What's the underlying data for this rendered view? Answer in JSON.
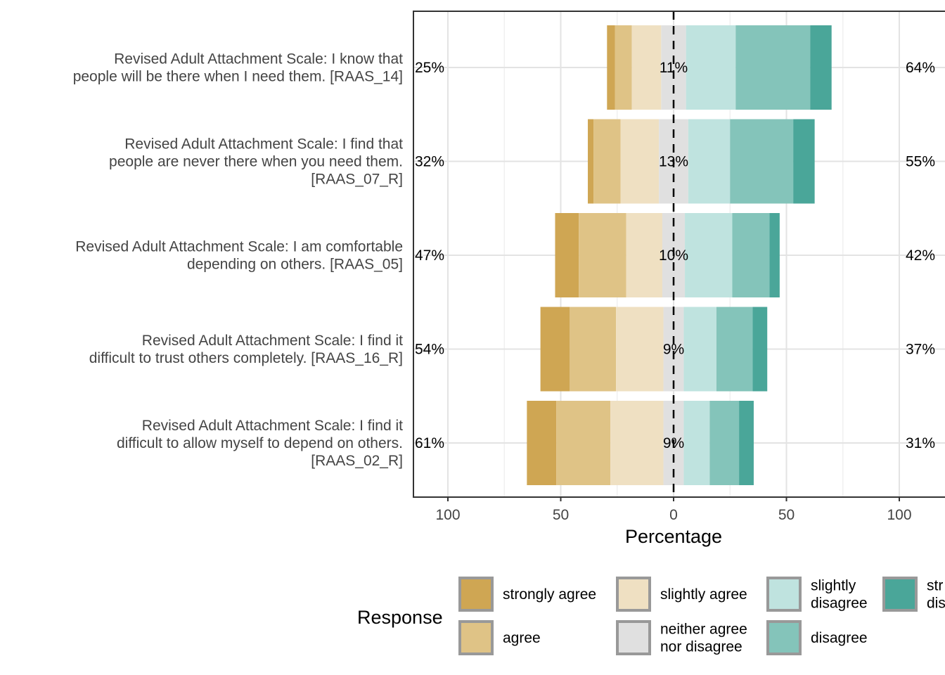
{
  "chart_data": {
    "type": "bar",
    "orientation": "horizontal-diverging",
    "xlabel": "Percentage",
    "x_ticks": [
      {
        "value": -100,
        "label": "100"
      },
      {
        "value": -50,
        "label": "50"
      },
      {
        "value": 0,
        "label": "0"
      },
      {
        "value": 50,
        "label": "50"
      },
      {
        "value": 100,
        "label": "100"
      }
    ],
    "xlim": [
      -115,
      120
    ],
    "grid": true,
    "legend": {
      "title": "Response",
      "placement": "bottom",
      "entries": [
        {
          "name": "strongly agree",
          "lines": [
            "strongly agree"
          ]
        },
        {
          "name": "agree",
          "lines": [
            "agree"
          ]
        },
        {
          "name": "slightly agree",
          "lines": [
            "slightly agree"
          ]
        },
        {
          "name": "neither agree nor disagree",
          "lines": [
            "neither agree",
            "nor disagree"
          ]
        },
        {
          "name": "slightly disagree",
          "lines": [
            "slightly",
            "disagree"
          ]
        },
        {
          "name": "disagree",
          "lines": [
            "disagree"
          ]
        },
        {
          "name": "strongly disagree",
          "lines": [
            "str",
            "dis"
          ]
        }
      ]
    },
    "colors": {
      "strongly agree": "#CFA653",
      "agree": "#DFC386",
      "slightly agree": "#EFE0C2",
      "neither agree nor disagree": "#E0E0E0",
      "slightly disagree": "#BFE3DF",
      "disagree": "#84C4BA",
      "strongly disagree": "#4AA699"
    },
    "items": [
      {
        "label_lines": [
          "Revised Adult Attachment Scale: I know that",
          "people will be there when I need them. [RAAS_14]"
        ],
        "values": [
          3.5,
          7.5,
          13,
          11,
          22,
          33,
          9.5
        ],
        "left_pct": "25%",
        "center_pct": "11%",
        "right_pct": "64%"
      },
      {
        "label_lines": [
          "Revised Adult Attachment Scale: I find that",
          "people are never there when you need them.",
          "[RAAS_07_R]"
        ],
        "values": [
          2.5,
          12,
          17,
          13,
          18.5,
          28,
          9.5
        ],
        "left_pct": "32%",
        "center_pct": "13%",
        "right_pct": "55%"
      },
      {
        "label_lines": [
          "Revised Adult Attachment Scale: I am comfortable",
          "depending on others. [RAAS_05]"
        ],
        "values": [
          10.5,
          21,
          16,
          10,
          21,
          16.5,
          4.5
        ],
        "left_pct": "47%",
        "center_pct": "10%",
        "right_pct": "42%"
      },
      {
        "label_lines": [
          "Revised Adult Attachment Scale: I find it",
          "difficult to trust others completely. [RAAS_16_R]"
        ],
        "values": [
          13,
          20.5,
          21,
          9,
          14.5,
          16,
          6.5
        ],
        "left_pct": "54%",
        "center_pct": "9%",
        "right_pct": "37%"
      },
      {
        "label_lines": [
          "Revised Adult Attachment Scale: I find it",
          "difficult to allow myself to depend on others.",
          "[RAAS_02_R]"
        ],
        "values": [
          13,
          24,
          23.5,
          9,
          11.5,
          13,
          6.5
        ],
        "left_pct": "61%",
        "center_pct": "9%",
        "right_pct": "31%"
      }
    ]
  }
}
